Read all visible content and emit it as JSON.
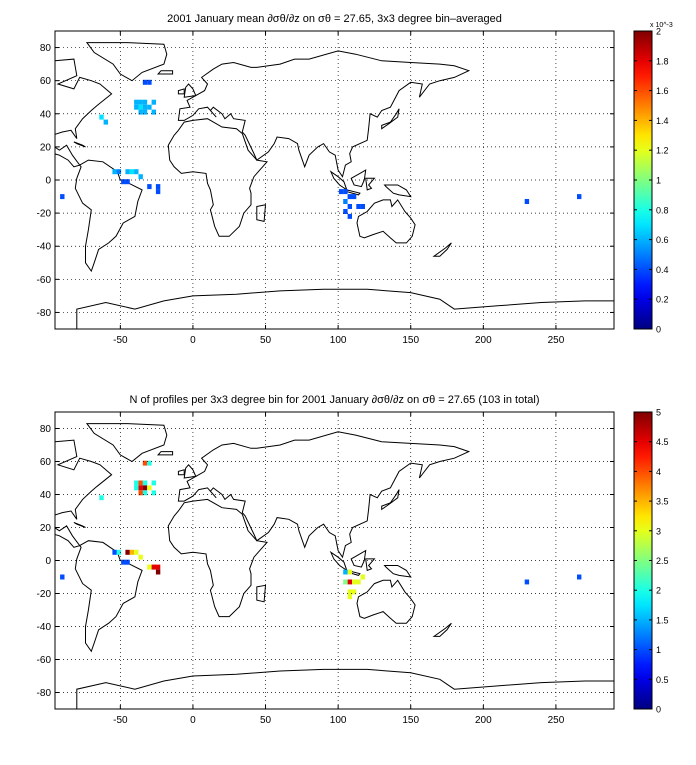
{
  "chart_data": [
    {
      "type": "heatmap",
      "title": "2001 January mean ∂σθ/∂z on σθ = 27.65, 3x3 degree bin–averaged",
      "xlim": [
        -95,
        290
      ],
      "ylim": [
        -90,
        90
      ],
      "x_ticks": [
        "-50",
        "0",
        "50",
        "100",
        "150",
        "200",
        "250"
      ],
      "x_tick_values": [
        -50,
        0,
        50,
        100,
        150,
        200,
        250
      ],
      "y_ticks": [
        "80",
        "60",
        "40",
        "20",
        "0",
        "-20",
        "-40",
        "-60",
        "-80"
      ],
      "y_tick_values": [
        80,
        60,
        40,
        20,
        0,
        -20,
        -40,
        -60,
        -80
      ],
      "grid": true,
      "colorbar": {
        "exponent_label": "x 10^-3",
        "min": 0,
        "max": 2,
        "ticks": [
          "0",
          "0.2",
          "0.4",
          "0.6",
          "0.8",
          "1",
          "1.2",
          "1.4",
          "1.6",
          "1.8",
          "2"
        ],
        "tick_values": [
          0,
          0.2,
          0.4,
          0.6,
          0.8,
          1,
          1.2,
          1.4,
          1.6,
          1.8,
          2
        ]
      },
      "cells": [
        [
          -33,
          59,
          0.4
        ],
        [
          -30,
          59,
          0.4
        ],
        [
          -39,
          47,
          0.6
        ],
        [
          -36,
          47,
          0.6
        ],
        [
          -33,
          47,
          0.6
        ],
        [
          -27,
          47,
          0.6
        ],
        [
          -39,
          44,
          0.6
        ],
        [
          -36,
          44,
          0.7
        ],
        [
          -33,
          44,
          0.6
        ],
        [
          -30,
          44,
          0.6
        ],
        [
          -36,
          41,
          0.6
        ],
        [
          -33,
          41,
          0.6
        ],
        [
          -27,
          41,
          0.6
        ],
        [
          -63,
          38,
          0.7
        ],
        [
          -60,
          35,
          0.6
        ],
        [
          -54,
          5,
          0.6
        ],
        [
          -51,
          5,
          0.5
        ],
        [
          -45,
          5,
          0.6
        ],
        [
          -42,
          5,
          0.7
        ],
        [
          -39,
          5,
          0.6
        ],
        [
          -36,
          2,
          0.6
        ],
        [
          -48,
          -1,
          0.4
        ],
        [
          -45,
          -1,
          0.4
        ],
        [
          -30,
          -4,
          0.4
        ],
        [
          -24,
          -4,
          0.4
        ],
        [
          -24,
          -7,
          0.4
        ],
        [
          -90,
          -10,
          0.4
        ],
        [
          102,
          -7,
          0.4
        ],
        [
          105,
          -7,
          0.4
        ],
        [
          108,
          -10,
          0.4
        ],
        [
          111,
          -10,
          0.4
        ],
        [
          105,
          -13,
          0.5
        ],
        [
          108,
          -16,
          0.4
        ],
        [
          114,
          -16,
          0.4
        ],
        [
          117,
          -16,
          0.4
        ],
        [
          105,
          -19,
          0.4
        ],
        [
          108,
          -22,
          0.4
        ],
        [
          230,
          -13,
          0.4
        ],
        [
          266,
          -10,
          0.4
        ]
      ]
    },
    {
      "type": "heatmap",
      "title": "N of profiles per 3x3 degree bin for 2001 January ∂σθ/∂z on σθ = 27.65 (103 in total)",
      "xlim": [
        -95,
        290
      ],
      "ylim": [
        -90,
        90
      ],
      "x_ticks": [
        "-50",
        "0",
        "50",
        "100",
        "150",
        "200",
        "250"
      ],
      "x_tick_values": [
        -50,
        0,
        50,
        100,
        150,
        200,
        250
      ],
      "y_ticks": [
        "80",
        "60",
        "40",
        "20",
        "0",
        "-20",
        "-40",
        "-60",
        "-80"
      ],
      "y_tick_values": [
        80,
        60,
        40,
        20,
        0,
        -20,
        -40,
        -60,
        -80
      ],
      "grid": true,
      "colorbar": {
        "min": 0,
        "max": 5,
        "ticks": [
          "0",
          "0.5",
          "1",
          "1.5",
          "2",
          "2.5",
          "3",
          "3.5",
          "4",
          "4.5",
          "5"
        ],
        "tick_values": [
          0,
          0.5,
          1,
          1.5,
          2,
          2.5,
          3,
          3.5,
          4,
          4.5,
          5
        ]
      },
      "cells": [
        [
          -33,
          59,
          4
        ],
        [
          -30,
          59,
          2
        ],
        [
          -39,
          47,
          2
        ],
        [
          -36,
          47,
          4
        ],
        [
          -33,
          47,
          2
        ],
        [
          -27,
          47,
          2
        ],
        [
          -39,
          44,
          2
        ],
        [
          -36,
          44,
          4.5
        ],
        [
          -33,
          44,
          5
        ],
        [
          -30,
          44,
          3
        ],
        [
          -36,
          41,
          4
        ],
        [
          -33,
          41,
          2
        ],
        [
          -27,
          41,
          2
        ],
        [
          -63,
          38,
          2
        ],
        [
          -54,
          5,
          1
        ],
        [
          -51,
          5,
          2
        ],
        [
          -45,
          5,
          5
        ],
        [
          -42,
          5,
          3.5
        ],
        [
          -39,
          5,
          3
        ],
        [
          -36,
          2,
          3
        ],
        [
          -48,
          -1,
          1
        ],
        [
          -45,
          -1,
          1
        ],
        [
          -30,
          -4,
          3
        ],
        [
          -27,
          -4,
          4.5
        ],
        [
          -24,
          -4,
          4.5
        ],
        [
          -24,
          -7,
          5
        ],
        [
          -90,
          -10,
          1
        ],
        [
          105,
          -7,
          1.5
        ],
        [
          108,
          -7,
          3
        ],
        [
          111,
          -13,
          3
        ],
        [
          108,
          -13,
          4.5
        ],
        [
          105,
          -13,
          2.5
        ],
        [
          114,
          -13,
          3
        ],
        [
          117,
          -10,
          3
        ],
        [
          111,
          -19,
          3
        ],
        [
          108,
          -19,
          3
        ],
        [
          108,
          -22,
          3
        ],
        [
          230,
          -13,
          1
        ],
        [
          266,
          -10,
          1
        ]
      ]
    }
  ]
}
